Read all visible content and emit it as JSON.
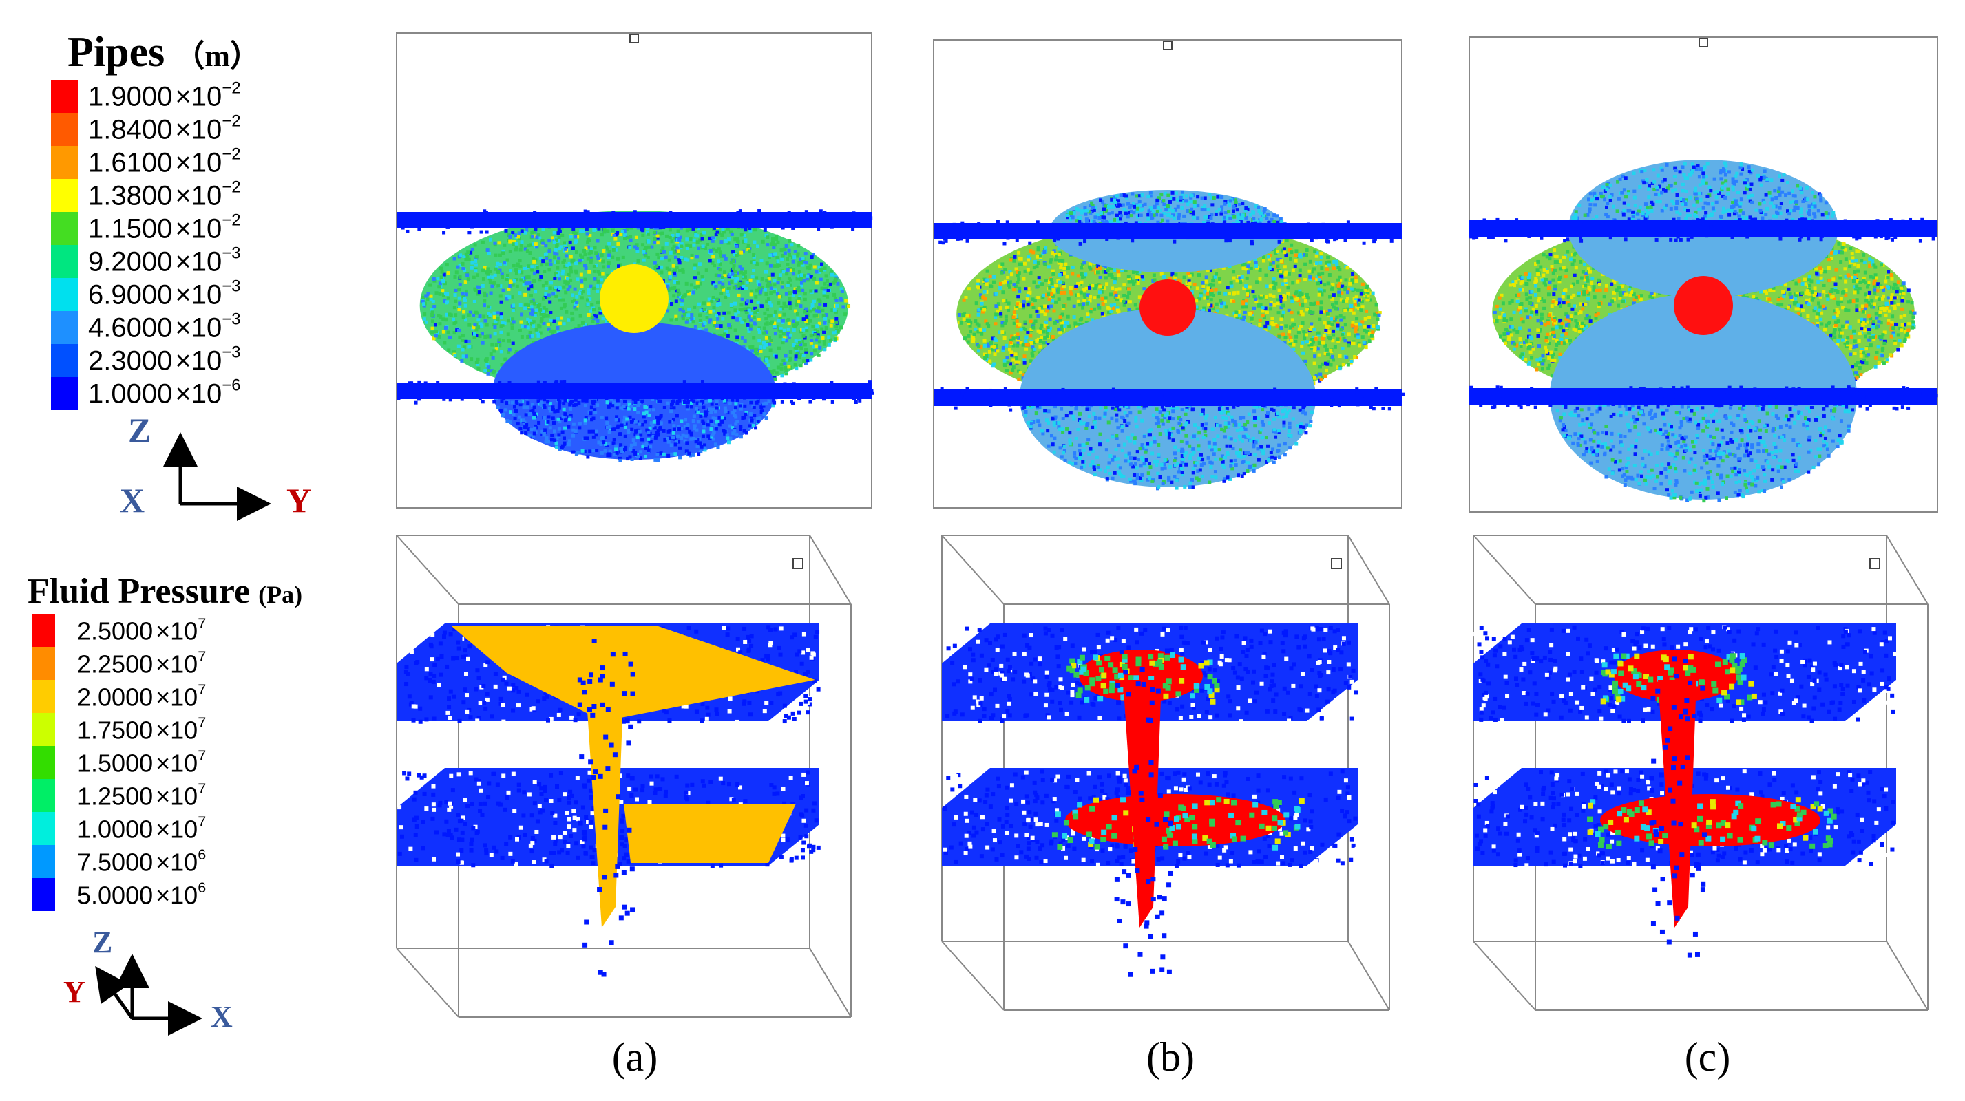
{
  "legends": {
    "pipes": {
      "title": "Pipes",
      "unit": "（m）",
      "entries": [
        {
          "mant": "1.9000",
          "exp": "−2",
          "color": "#ff0000"
        },
        {
          "mant": "1.8400",
          "exp": "−2",
          "color": "#ff5a00"
        },
        {
          "mant": "1.6100",
          "exp": "−2",
          "color": "#ff9900"
        },
        {
          "mant": "1.3800",
          "exp": "−2",
          "color": "#ffff00"
        },
        {
          "mant": "1.1500",
          "exp": "−2",
          "color": "#44dd22"
        },
        {
          "mant": "9.2000",
          "exp": "−3",
          "color": "#00e680"
        },
        {
          "mant": "6.9000",
          "exp": "−3",
          "color": "#00e0ee"
        },
        {
          "mant": "4.6000",
          "exp": "−3",
          "color": "#1e90ff"
        },
        {
          "mant": "2.3000",
          "exp": "−3",
          "color": "#0050ff"
        },
        {
          "mant": "1.0000",
          "exp": "−6",
          "color": "#0000ff"
        }
      ]
    },
    "fluid": {
      "title": "Fluid Pressure",
      "unit": "(Pa)",
      "entries": [
        {
          "mant": "2.5000",
          "exp": "7",
          "color": "#ff0000"
        },
        {
          "mant": "2.2500",
          "exp": "7",
          "color": "#ff8c00"
        },
        {
          "mant": "2.0000",
          "exp": "7",
          "color": "#ffcc00"
        },
        {
          "mant": "1.7500",
          "exp": "7",
          "color": "#ccff00"
        },
        {
          "mant": "1.5000",
          "exp": "7",
          "color": "#33dd00"
        },
        {
          "mant": "1.2500",
          "exp": "7",
          "color": "#00ee66"
        },
        {
          "mant": "1.0000",
          "exp": "7",
          "color": "#00eedd"
        },
        {
          "mant": "7.5000",
          "exp": "6",
          "color": "#0099ff"
        },
        {
          "mant": "5.0000",
          "exp": "6",
          "color": "#0000ff"
        }
      ]
    },
    "times": "×"
  },
  "axes": {
    "top": {
      "up": "Z",
      "left": "X",
      "right": "Y"
    },
    "bottom": {
      "up": "Z",
      "diag": "Y",
      "right": "X"
    }
  },
  "panels": [
    {
      "label": "(a)",
      "central": "#ffee00",
      "fluid_main": "#ffc000"
    },
    {
      "label": "(b)",
      "central": "#ff1010",
      "fluid_main": "#ff0000"
    },
    {
      "label": "(c)",
      "central": "#ff1010",
      "fluid_main": "#ff0000"
    }
  ],
  "colors": {
    "frame": "#888888",
    "band": "#0018ff",
    "blue_light": "#2a7fff",
    "green": "#33cc55",
    "cyan": "#22d4ee",
    "yellow": "#e8e800",
    "orange": "#ff9900",
    "axis_blue": "#3a5a9c",
    "axis_red": "#c00000"
  }
}
